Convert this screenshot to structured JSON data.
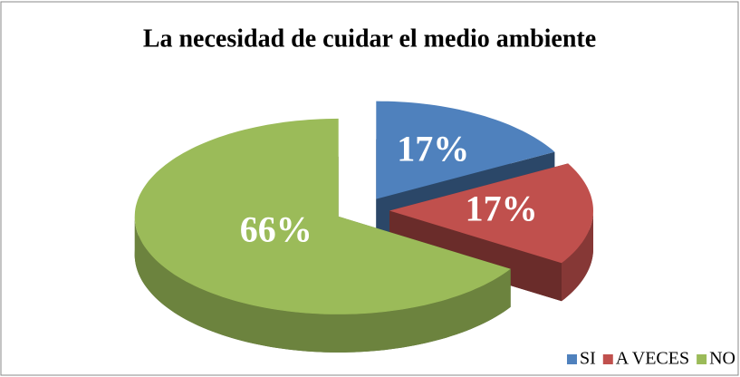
{
  "chart_data": {
    "type": "pie",
    "title": "La necesidad de cuidar el medio ambiente",
    "categories": [
      "SI",
      "A VECES",
      "NO"
    ],
    "values": [
      17,
      17,
      66
    ],
    "value_labels": [
      "17%",
      "17%",
      "66%"
    ],
    "colors": [
      "#4f81bd",
      "#c0504d",
      "#9bbb59"
    ],
    "legend": "bottom-right"
  }
}
